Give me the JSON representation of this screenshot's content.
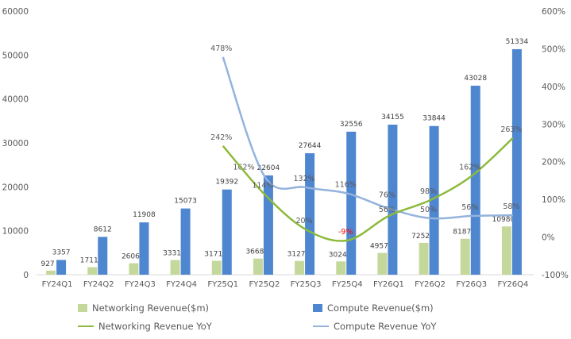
{
  "chart_data": {
    "type": "bar+line",
    "categories": [
      "FY24Q1",
      "FY24Q2",
      "FY24Q3",
      "FY24Q4",
      "FY25Q1",
      "FY25Q2",
      "FY25Q3",
      "FY25Q4",
      "FY26Q1",
      "FY26Q2",
      "FY26Q3",
      "FY26Q4"
    ],
    "left_axis": {
      "min": 0,
      "max": 60000,
      "ticks": [
        "0",
        "10000",
        "20000",
        "30000",
        "40000",
        "50000",
        "60000"
      ]
    },
    "right_axis": {
      "min": -100,
      "max": 600,
      "ticks": [
        "-100%",
        "0%",
        "100%",
        "200%",
        "300%",
        "400%",
        "500%",
        "600%"
      ]
    },
    "series": [
      {
        "name": "Networking Revenue($m)",
        "type": "bar",
        "color": "#c5d89c",
        "values": [
          927,
          1711,
          2606,
          3331,
          3171,
          3668,
          3127,
          3024,
          4957,
          7252,
          8187,
          10980
        ]
      },
      {
        "name": "Compute Revenue($m)",
        "type": "bar",
        "color": "#4f86d0",
        "values": [
          3357,
          8612,
          11908,
          15073,
          19392,
          22604,
          27644,
          32556,
          34155,
          33844,
          43028,
          51334
        ]
      },
      {
        "name": "Networking Revenue YoY",
        "type": "line",
        "color": "#8cba3c",
        "values": [
          null,
          null,
          null,
          null,
          242,
          114,
          20,
          -9,
          56,
          98,
          162,
          263
        ]
      },
      {
        "name": "Compute Revenue YoY",
        "type": "line",
        "color": "#94b3dc",
        "values": [
          null,
          null,
          null,
          null,
          478,
          162,
          132,
          116,
          76,
          50,
          56,
          58
        ]
      }
    ],
    "negative_label_color": "#ff0000",
    "legend_position": "bottom"
  }
}
